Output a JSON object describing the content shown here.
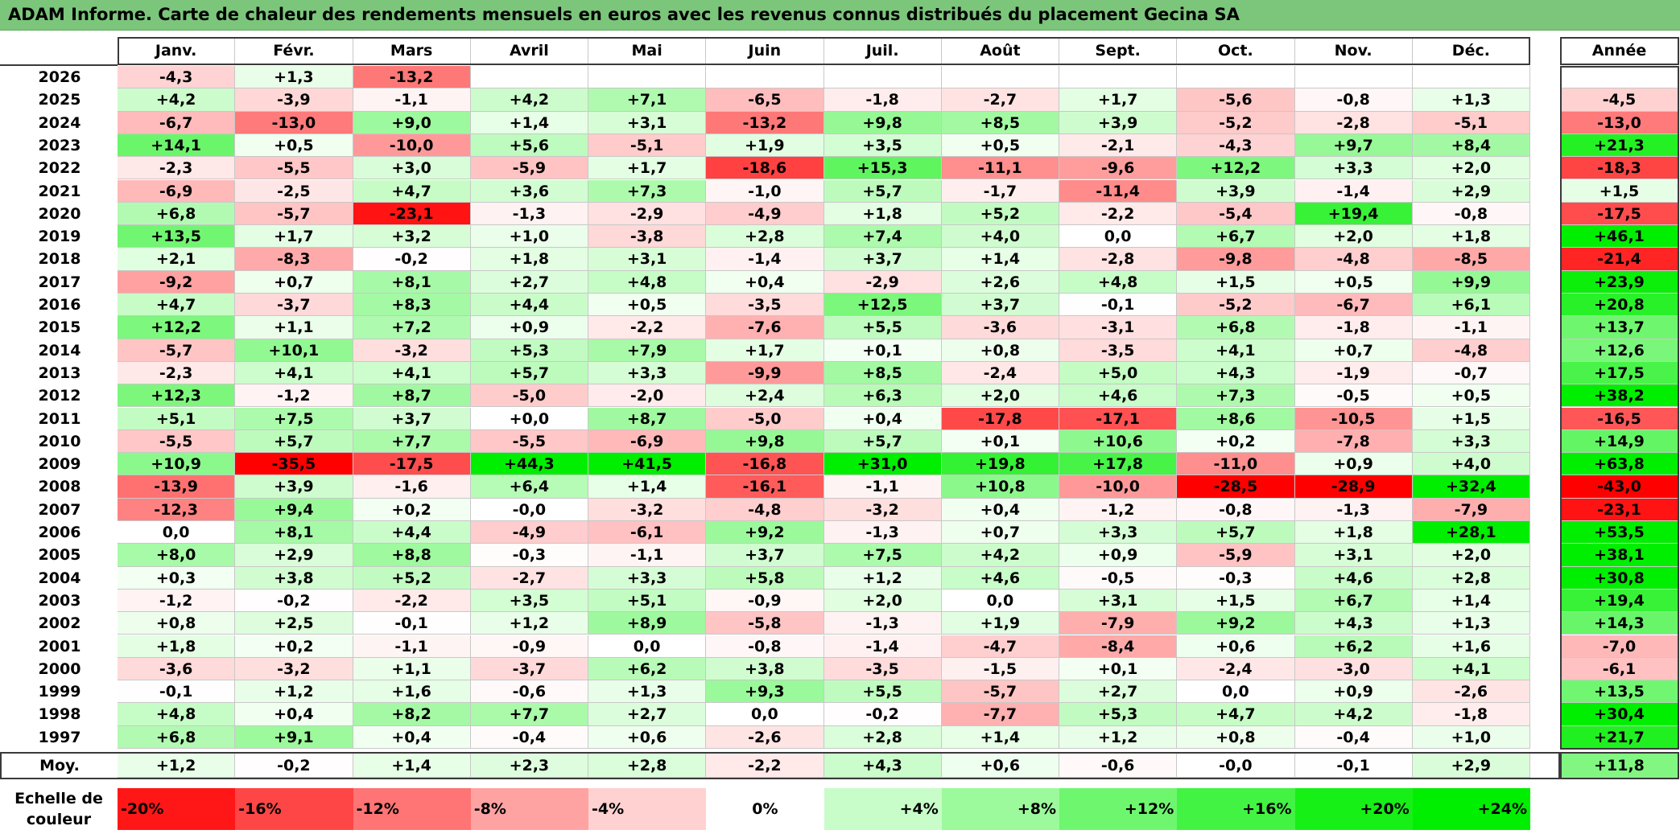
{
  "title": "ADAM Informe. Carte de chaleur des rendements mensuels en euros avec les revenus connus distribués du placement Gecina SA",
  "chart_data": {
    "type": "heatmap",
    "title": "ADAM Informe. Carte de chaleur des rendements mensuels en euros avec les revenus connus distribués du placement Gecina SA",
    "months": [
      "Janv.",
      "Févr.",
      "Mars",
      "Avril",
      "Mai",
      "Juin",
      "Juil.",
      "Août",
      "Sept.",
      "Oct.",
      "Nov.",
      "Déc."
    ],
    "year_label": "Année",
    "rows": [
      {
        "year": "2026",
        "values": [
          "-4,3",
          "+1,3",
          "-13,2",
          "",
          "",
          "",
          "",
          "",
          "",
          "",
          "",
          ""
        ],
        "annual": ""
      },
      {
        "year": "2025",
        "values": [
          "+4,2",
          "-3,9",
          "-1,1",
          "+4,2",
          "+7,1",
          "-6,5",
          "-1,8",
          "-2,7",
          "+1,7",
          "-5,6",
          "-0,8",
          "+1,3"
        ],
        "annual": "-4,5"
      },
      {
        "year": "2024",
        "values": [
          "-6,7",
          "-13,0",
          "+9,0",
          "+1,4",
          "+3,1",
          "-13,2",
          "+9,8",
          "+8,5",
          "+3,9",
          "-5,2",
          "-2,8",
          "-5,1"
        ],
        "annual": "-13,0"
      },
      {
        "year": "2023",
        "values": [
          "+14,1",
          "+0,5",
          "-10,0",
          "+5,6",
          "-5,1",
          "+1,9",
          "+3,5",
          "+0,5",
          "-2,1",
          "-4,3",
          "+9,7",
          "+8,4"
        ],
        "annual": "+21,3"
      },
      {
        "year": "2022",
        "values": [
          "-2,3",
          "-5,5",
          "+3,0",
          "-5,9",
          "+1,7",
          "-18,6",
          "+15,3",
          "-11,1",
          "-9,6",
          "+12,2",
          "+3,3",
          "+2,0"
        ],
        "annual": "-18,3"
      },
      {
        "year": "2021",
        "values": [
          "-6,9",
          "-2,5",
          "+4,7",
          "+3,6",
          "+7,3",
          "-1,0",
          "+5,7",
          "-1,7",
          "-11,4",
          "+3,9",
          "-1,4",
          "+2,9"
        ],
        "annual": "+1,5"
      },
      {
        "year": "2020",
        "values": [
          "+6,8",
          "-5,7",
          "-23,1",
          "-1,3",
          "-2,9",
          "-4,9",
          "+1,8",
          "+5,2",
          "-2,2",
          "-5,4",
          "+19,4",
          "-0,8"
        ],
        "annual": "-17,5"
      },
      {
        "year": "2019",
        "values": [
          "+13,5",
          "+1,7",
          "+3,2",
          "+1,0",
          "-3,8",
          "+2,8",
          "+7,4",
          "+4,0",
          "0,0",
          "+6,7",
          "+2,0",
          "+1,8"
        ],
        "annual": "+46,1"
      },
      {
        "year": "2018",
        "values": [
          "+2,1",
          "-8,3",
          "-0,2",
          "+1,8",
          "+3,1",
          "-1,4",
          "+3,7",
          "+1,4",
          "-2,8",
          "-9,8",
          "-4,8",
          "-8,5"
        ],
        "annual": "-21,4"
      },
      {
        "year": "2017",
        "values": [
          "-9,2",
          "+0,7",
          "+8,1",
          "+2,7",
          "+4,8",
          "+0,4",
          "-2,9",
          "+2,6",
          "+4,8",
          "+1,5",
          "+0,5",
          "+9,9"
        ],
        "annual": "+23,9"
      },
      {
        "year": "2016",
        "values": [
          "+4,7",
          "-3,7",
          "+8,3",
          "+4,4",
          "+0,5",
          "-3,5",
          "+12,5",
          "+3,7",
          "-0,1",
          "-5,2",
          "-6,7",
          "+6,1"
        ],
        "annual": "+20,8"
      },
      {
        "year": "2015",
        "values": [
          "+12,2",
          "+1,1",
          "+7,2",
          "+0,9",
          "-2,2",
          "-7,6",
          "+5,5",
          "-3,6",
          "-3,1",
          "+6,8",
          "-1,8",
          "-1,1"
        ],
        "annual": "+13,7"
      },
      {
        "year": "2014",
        "values": [
          "-5,7",
          "+10,1",
          "-3,2",
          "+5,3",
          "+7,9",
          "+1,7",
          "+0,1",
          "+0,8",
          "-3,5",
          "+4,1",
          "+0,7",
          "-4,8"
        ],
        "annual": "+12,6"
      },
      {
        "year": "2013",
        "values": [
          "-2,3",
          "+4,1",
          "+4,1",
          "+5,7",
          "+3,3",
          "-9,9",
          "+8,5",
          "-2,4",
          "+5,0",
          "+4,3",
          "-1,9",
          "-0,7"
        ],
        "annual": "+17,5"
      },
      {
        "year": "2012",
        "values": [
          "+12,3",
          "-1,2",
          "+8,7",
          "-5,0",
          "-2,0",
          "+2,4",
          "+6,3",
          "+2,0",
          "+4,6",
          "+7,3",
          "-0,5",
          "+0,5"
        ],
        "annual": "+38,2"
      },
      {
        "year": "2011",
        "values": [
          "+5,1",
          "+7,5",
          "+3,7",
          "+0,0",
          "+8,7",
          "-5,0",
          "+0,4",
          "-17,8",
          "-17,1",
          "+8,6",
          "-10,5",
          "+1,5"
        ],
        "annual": "-16,5"
      },
      {
        "year": "2010",
        "values": [
          "-5,5",
          "+5,7",
          "+7,7",
          "-5,5",
          "-6,9",
          "+9,8",
          "+5,7",
          "+0,1",
          "+10,6",
          "+0,2",
          "-7,8",
          "+3,3"
        ],
        "annual": "+14,9"
      },
      {
        "year": "2009",
        "values": [
          "+10,9",
          "-35,5",
          "-17,5",
          "+44,3",
          "+41,5",
          "-16,8",
          "+31,0",
          "+19,8",
          "+17,8",
          "-11,0",
          "+0,9",
          "+4,0"
        ],
        "annual": "+63,8"
      },
      {
        "year": "2008",
        "values": [
          "-13,9",
          "+3,9",
          "-1,6",
          "+6,4",
          "+1,4",
          "-16,1",
          "-1,1",
          "+10,8",
          "-10,0",
          "-28,5",
          "-28,9",
          "+32,4"
        ],
        "annual": "-43,0"
      },
      {
        "year": "2007",
        "values": [
          "-12,3",
          "+9,4",
          "+0,2",
          "-0,0",
          "-3,2",
          "-4,8",
          "-3,2",
          "+0,4",
          "-1,2",
          "-0,8",
          "-1,3",
          "-7,9"
        ],
        "annual": "-23,1"
      },
      {
        "year": "2006",
        "values": [
          "0,0",
          "+8,1",
          "+4,4",
          "-4,9",
          "-6,1",
          "+9,2",
          "-1,3",
          "+0,7",
          "+3,3",
          "+5,7",
          "+1,8",
          "+28,1"
        ],
        "annual": "+53,5"
      },
      {
        "year": "2005",
        "values": [
          "+8,0",
          "+2,9",
          "+8,8",
          "-0,3",
          "-1,1",
          "+3,7",
          "+7,5",
          "+4,2",
          "+0,9",
          "-5,9",
          "+3,1",
          "+2,0"
        ],
        "annual": "+38,1"
      },
      {
        "year": "2004",
        "values": [
          "+0,3",
          "+3,8",
          "+5,2",
          "-2,7",
          "+3,3",
          "+5,8",
          "+1,2",
          "+4,6",
          "-0,5",
          "-0,3",
          "+4,6",
          "+2,8"
        ],
        "annual": "+30,8"
      },
      {
        "year": "2003",
        "values": [
          "-1,2",
          "-0,2",
          "-2,2",
          "+3,5",
          "+5,1",
          "-0,9",
          "+2,0",
          "0,0",
          "+3,1",
          "+1,5",
          "+6,7",
          "+1,4"
        ],
        "annual": "+19,4"
      },
      {
        "year": "2002",
        "values": [
          "+0,8",
          "+2,5",
          "-0,1",
          "+1,2",
          "+8,9",
          "-5,8",
          "-1,3",
          "+1,9",
          "-7,9",
          "+9,2",
          "+4,3",
          "+1,3"
        ],
        "annual": "+14,3"
      },
      {
        "year": "2001",
        "values": [
          "+1,8",
          "+0,2",
          "-1,1",
          "-0,9",
          "0,0",
          "-0,8",
          "-1,4",
          "-4,7",
          "-8,4",
          "+0,6",
          "+6,2",
          "+1,6"
        ],
        "annual": "-7,0"
      },
      {
        "year": "2000",
        "values": [
          "-3,6",
          "-3,2",
          "+1,1",
          "-3,7",
          "+6,2",
          "+3,8",
          "-3,5",
          "-1,5",
          "+0,1",
          "-2,4",
          "-3,0",
          "+4,1"
        ],
        "annual": "-6,1"
      },
      {
        "year": "1999",
        "values": [
          "-0,1",
          "+1,2",
          "+1,6",
          "-0,6",
          "+1,3",
          "+9,3",
          "+5,5",
          "-5,7",
          "+2,7",
          "0,0",
          "+0,9",
          "-2,6"
        ],
        "annual": "+13,5"
      },
      {
        "year": "1998",
        "values": [
          "+4,8",
          "+0,4",
          "+8,2",
          "+7,7",
          "+2,7",
          "0,0",
          "-0,2",
          "-7,7",
          "+5,3",
          "+4,7",
          "+4,2",
          "-1,8"
        ],
        "annual": "+30,4"
      },
      {
        "year": "1997",
        "values": [
          "+6,8",
          "+9,1",
          "+0,4",
          "-0,4",
          "+0,6",
          "-2,6",
          "+2,8",
          "+1,4",
          "+1,2",
          "+0,8",
          "-0,4",
          "+1,0"
        ],
        "annual": "+21,7"
      }
    ],
    "average": {
      "label": "Moy.",
      "values": [
        "+1,2",
        "-0,2",
        "+1,4",
        "+2,3",
        "+2,8",
        "-2,2",
        "+4,3",
        "+0,6",
        "-0,6",
        "-0,0",
        "-0,1",
        "+2,9"
      ],
      "annual": "+11,8"
    },
    "scale": {
      "label": "Echelle de couleur",
      "steps": [
        "-20%",
        "-16%",
        "-12%",
        "-8%",
        "-4%",
        "0%",
        "+4%",
        "+8%",
        "+12%",
        "+16%",
        "+20%",
        "+24%"
      ]
    },
    "colors": {
      "negative_max": "#ff0000",
      "neutral": "#ffffff",
      "positive_max": "#00ee00",
      "title_bg": "#7bc67b"
    }
  }
}
